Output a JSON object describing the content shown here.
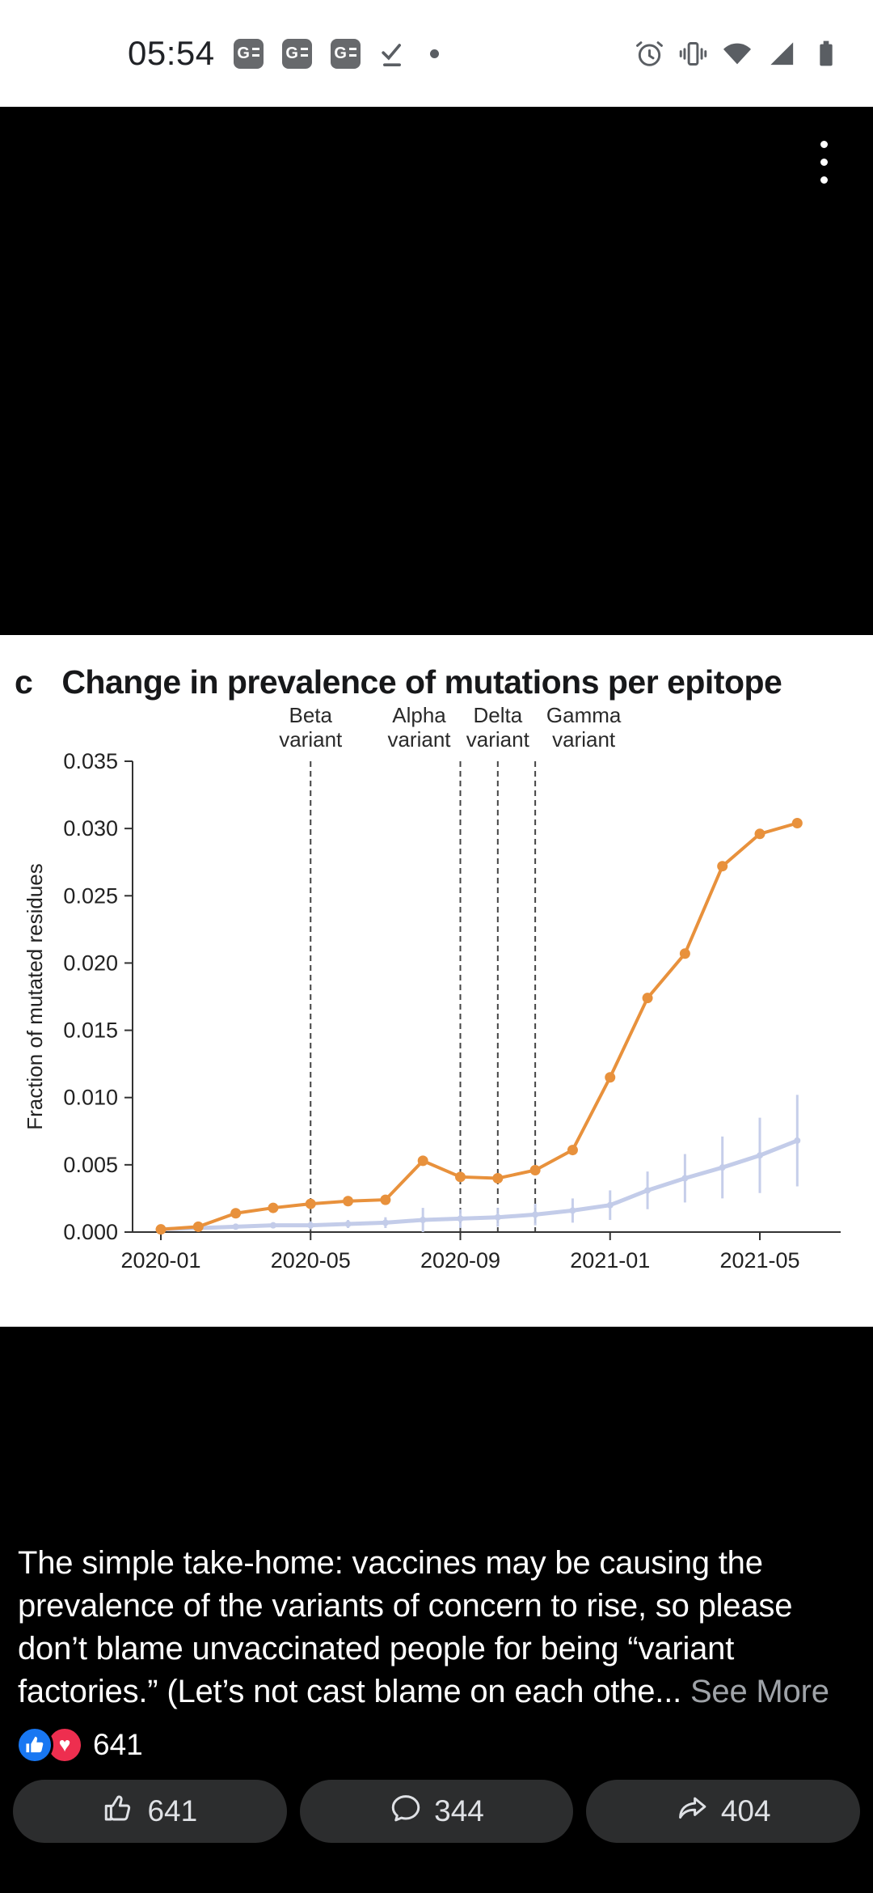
{
  "status_bar": {
    "time": "05:54",
    "notification_icons": [
      "google-news",
      "google-news",
      "google-news",
      "check-underline",
      "notification-dot"
    ],
    "system_icons": [
      "alarm",
      "vibrate",
      "wifi",
      "cellular-signal",
      "battery"
    ]
  },
  "viewer": {
    "menu_icon": "more-vertical"
  },
  "figure": {
    "panel_label": "c",
    "title": "Change in prevalence of mutations per epitope"
  },
  "chart_data": {
    "type": "line",
    "title": "Change in prevalence of mutations per epitope",
    "xlabel": "",
    "ylabel": "Fraction of mutated residues",
    "ylim": [
      0,
      0.035
    ],
    "y_ticks": [
      0,
      0.005,
      0.01,
      0.015,
      0.02,
      0.025,
      0.03,
      0.035
    ],
    "x_months": [
      "2020-01",
      "2020-02",
      "2020-03",
      "2020-04",
      "2020-05",
      "2020-06",
      "2020-07",
      "2020-08",
      "2020-09",
      "2020-10",
      "2020-11",
      "2020-12",
      "2021-01",
      "2021-02",
      "2021-03",
      "2021-04",
      "2021-05",
      "2021-06"
    ],
    "x_tick_indices": [
      0,
      4,
      8,
      12,
      16
    ],
    "x_tick_labels": [
      "2020-01",
      "2020-05",
      "2020-09",
      "2021-01",
      "2021-05"
    ],
    "grid": false,
    "legend": "none",
    "series": [
      {
        "name": "orange-series",
        "color": "#e8913c",
        "values": [
          0.0002,
          0.0004,
          0.0014,
          0.0018,
          0.0021,
          0.0023,
          0.0024,
          0.0053,
          0.0041,
          0.004,
          0.0046,
          0.0061,
          0.0115,
          0.0174,
          0.0207,
          0.0272,
          0.0296,
          0.0304
        ]
      },
      {
        "name": "blue-series",
        "color": "#c3cce9",
        "values": [
          0.0002,
          0.0003,
          0.0004,
          0.0005,
          0.0005,
          0.0006,
          0.0007,
          0.0009,
          0.001,
          0.0011,
          0.0013,
          0.0016,
          0.002,
          0.0031,
          0.004,
          0.0048,
          0.0057,
          0.0068
        ],
        "errors": [
          0.0001,
          0.0001,
          0.0002,
          0.0002,
          0.0003,
          0.0003,
          0.0004,
          0.0009,
          0.0007,
          0.0007,
          0.0008,
          0.0009,
          0.0011,
          0.0014,
          0.0018,
          0.0023,
          0.0028,
          0.0034
        ]
      }
    ],
    "variant_lines": [
      {
        "label": "Beta variant",
        "month": "2020-05"
      },
      {
        "label": "Alpha variant",
        "month": "2020-09"
      },
      {
        "label": "Delta variant",
        "month": "2020-10"
      },
      {
        "label": "Gamma variant",
        "month": "2020-11"
      }
    ]
  },
  "post": {
    "text": "The simple take-home: vaccines may be causing the prevalence of the variants of concern to rise, so please don’t blame unvaccinated people for being “variant factories.” (Let’s not cast blame on each othe... ",
    "see_more": "See More",
    "reaction_count": "641",
    "actions": [
      {
        "name": "like",
        "label": "641"
      },
      {
        "name": "comment",
        "label": "344"
      },
      {
        "name": "share",
        "label": "404"
      }
    ]
  }
}
